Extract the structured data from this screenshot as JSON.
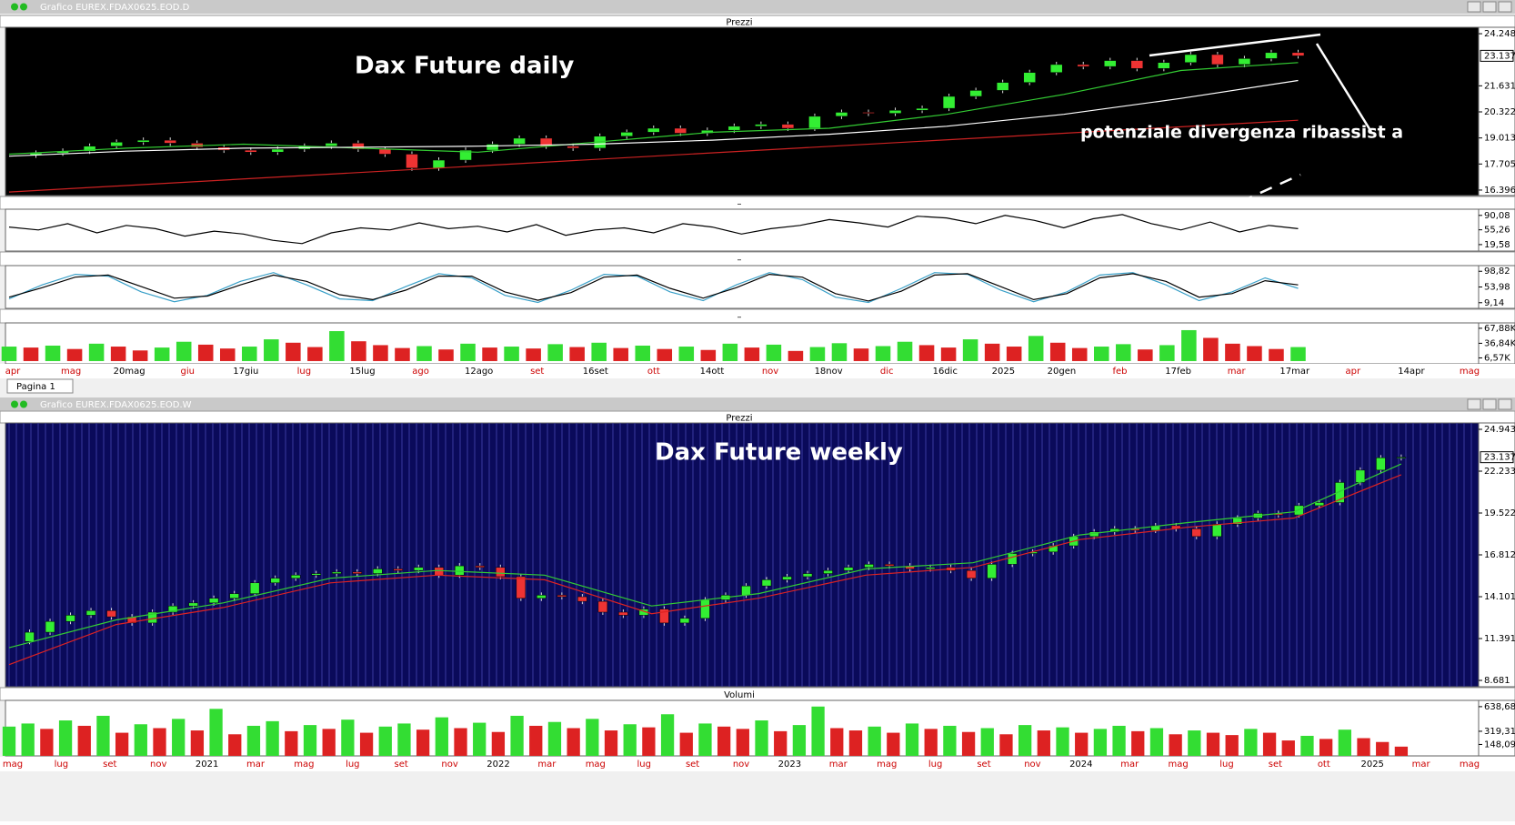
{
  "windows": [
    {
      "title": "Grafico EUREX.FDAX0625.EOD.D",
      "panels": [
        {
          "header": "Prezzi",
          "type": "candle",
          "background": "#000000",
          "ylim": [
            16120,
            24570
          ],
          "yticks": [
            {
              "value": 24248,
              "label": "24.248"
            },
            {
              "value": 21631,
              "label": "21.631"
            },
            {
              "value": 20322,
              "label": "20.322"
            },
            {
              "value": 19013,
              "label": "19.013"
            },
            {
              "value": 17705,
              "label": "17.705"
            },
            {
              "value": 16396,
              "label": "16.396"
            }
          ],
          "last": {
            "value": 23137,
            "label": "23.137"
          },
          "annotations": [
            "Dax Future daily",
            "potenziale  divergenza ribassist a"
          ],
          "series": [
            {
              "name": "close",
              "values": [
                18150,
                18250,
                18350,
                18600,
                18800,
                18900,
                18750,
                18550,
                18400,
                18300,
                18450,
                18600,
                18750,
                18450,
                18200,
                17500,
                17900,
                18400,
                18700,
                19000,
                18600,
                18500,
                19100,
                19300,
                19500,
                19250,
                19400,
                19600,
                19700,
                19500,
                20100,
                20300,
                20250,
                20400,
                20500,
                21100,
                21400,
                21800,
                22300,
                22700,
                22600,
                22900,
                22500,
                22800,
                23200,
                22700,
                23000,
                23300,
                23137
              ]
            },
            {
              "name": "ma-fast",
              "color": "#33cc33",
              "values": [
                18200,
                18500,
                18700,
                18500,
                18300,
                18800,
                19300,
                19500,
                20200,
                21200,
                22400,
                22800
              ]
            },
            {
              "name": "ma-mid",
              "color": "#ffffff",
              "values": [
                18100,
                18350,
                18500,
                18550,
                18600,
                18700,
                18900,
                19200,
                19600,
                20200,
                21000,
                21900
              ]
            },
            {
              "name": "ma-slow",
              "color": "#cc2222",
              "values": [
                16300,
                19900
              ]
            }
          ]
        },
        {
          "header": "–",
          "type": "line",
          "background": "#ffffff",
          "ylim": [
            4,
            105
          ],
          "yticks": [
            {
              "value": 90.08,
              "label": "90,08"
            },
            {
              "value": 55.26,
              "label": "55,26"
            },
            {
              "value": 19.58,
              "label": "19,58"
            }
          ],
          "series": [
            {
              "name": "rsi",
              "color": "#000000",
              "values": [
                62,
                55,
                70,
                48,
                66,
                58,
                40,
                52,
                45,
                30,
                22,
                48,
                60,
                55,
                72,
                58,
                64,
                50,
                68,
                42,
                55,
                60,
                48,
                70,
                62,
                45,
                58,
                66,
                80,
                72,
                62,
                88,
                84,
                70,
                90,
                78,
                60,
                82,
                92,
                70,
                55,
                74,
                50,
                66,
                58
              ]
            }
          ]
        },
        {
          "header": "–",
          "type": "line",
          "background": "#ffffff",
          "ylim": [
            -7,
            115
          ],
          "yticks": [
            {
              "value": 98.82,
              "label": "98,82"
            },
            {
              "value": 53.98,
              "label": "53,98"
            },
            {
              "value": 9.14,
              "label": "9,14"
            }
          ],
          "series": [
            {
              "name": "stoch-k",
              "color": "#3aa0c8",
              "values": [
                20,
                60,
                90,
                85,
                40,
                12,
                30,
                70,
                95,
                60,
                20,
                15,
                55,
                92,
                80,
                30,
                10,
                45,
                90,
                85,
                40,
                15,
                60,
                95,
                75,
                25,
                10,
                50,
                95,
                90,
                45,
                12,
                40,
                88,
                95,
                60,
                15,
                40,
                80,
                50
              ]
            },
            {
              "name": "stoch-d",
              "color": "#000000",
              "values": [
                25,
                52,
                82,
                88,
                55,
                22,
                28,
                60,
                88,
                70,
                32,
                18,
                45,
                85,
                85,
                40,
                16,
                38,
                82,
                88,
                50,
                22,
                52,
                90,
                82,
                35,
                14,
                42,
                88,
                92,
                55,
                18,
                35,
                80,
                92,
                70,
                25,
                35,
                72,
                60
              ]
            }
          ]
        },
        {
          "header": "–",
          "type": "volume",
          "background": "#ffffff",
          "ylim": [
            -5700,
            79000
          ],
          "yticks": [
            {
              "value": 67880,
              "label": "67,88K"
            },
            {
              "value": 36840,
              "label": "36,84K"
            },
            {
              "value": 6570,
              "label": "6,57K"
            }
          ],
          "up_color": "#33dd33",
          "down_color": "#dd2222",
          "series": [
            {
              "name": "volume",
              "values": [
                30000,
                28000,
                32000,
                25000,
                36000,
                30000,
                22000,
                28000,
                40000,
                34000,
                26000,
                30000,
                45000,
                38000,
                29000,
                62000,
                41000,
                33000,
                27000,
                31000,
                24000,
                36000,
                28000,
                30000,
                26000,
                35000,
                29000,
                38000,
                27000,
                32000,
                25000,
                30000,
                23000,
                36000,
                28000,
                34000,
                21000,
                29000,
                37000,
                26000,
                31000,
                40000,
                33000,
                28000,
                45000,
                36000,
                30000,
                52000,
                38000,
                27000,
                30000,
                35000,
                24000,
                33000,
                64000,
                48000,
                36000,
                31000,
                25000,
                29000
              ]
            }
          ]
        }
      ],
      "xlabels": [
        "apr",
        "mag",
        "20mag",
        "giu",
        "17giu",
        "lug",
        "15lug",
        "ago",
        "12ago",
        "set",
        "16set",
        "ott",
        "14ott",
        "nov",
        "18nov",
        "dic",
        "16dic",
        "2025",
        "20gen",
        "feb",
        "17feb",
        "mar",
        "17mar",
        "apr",
        "14apr",
        "mag"
      ],
      "tab": "Pagina 1"
    },
    {
      "title": "Grafico EUREX.FDAX0625.EOD.W",
      "panels": [
        {
          "header": "Prezzi",
          "type": "candle",
          "background": "#0a0a5a",
          "vgrid": true,
          "ylim": [
            8270,
            25355
          ],
          "yticks": [
            {
              "value": 24943,
              "label": "24.943"
            },
            {
              "value": 22233,
              "label": "22.233"
            },
            {
              "value": 19522,
              "label": "19.522"
            },
            {
              "value": 16812,
              "label": "16.812"
            },
            {
              "value": 14101,
              "label": "14.101"
            },
            {
              "value": 11391,
              "label": "11.391"
            },
            {
              "value": 8681,
              "label": "8.681"
            }
          ],
          "last": {
            "value": 23137,
            "label": "23.137"
          },
          "annotations": [
            "Dax Future weekly"
          ],
          "series": [
            {
              "name": "close",
              "values": [
                11200,
                11800,
                12500,
                12900,
                13200,
                12800,
                12400,
                13100,
                13500,
                13700,
                14000,
                14300,
                15000,
                15300,
                15500,
                15600,
                15700,
                15600,
                15900,
                15800,
                16000,
                15500,
                16100,
                16000,
                15400,
                14000,
                14200,
                14100,
                13800,
                13100,
                12900,
                13300,
                12400,
                12700,
                13900,
                14200,
                14800,
                15200,
                15400,
                15600,
                15800,
                16000,
                16200,
                16100,
                15900,
                16000,
                15800,
                15300,
                16200,
                16900,
                17000,
                17400,
                18000,
                18300,
                18500,
                18400,
                18700,
                18500,
                18000,
                18800,
                19200,
                19500,
                19400,
                20000,
                20200,
                21500,
                22300,
                23100,
                23137
              ]
            },
            {
              "name": "ma-fast",
              "color": "#33cc33",
              "values": [
                10800,
                12600,
                13700,
                15300,
                15800,
                15500,
                13500,
                14300,
                15900,
                16300,
                18100,
                18900,
                19600,
                22700
              ]
            },
            {
              "name": "ma-slow",
              "color": "#dd2222",
              "values": [
                9700,
                12300,
                13400,
                15000,
                15500,
                15200,
                13000,
                14000,
                15500,
                16000,
                17800,
                18600,
                19200,
                22000
              ]
            }
          ]
        },
        {
          "header": "Volumi",
          "type": "volume",
          "background": "#ffffff",
          "ylim": [
            0,
            720000
          ],
          "yticks": [
            {
              "value": 638680,
              "label": "638,68K"
            },
            {
              "value": 319310,
              "label": "319,31K"
            },
            {
              "value": 148090,
              "label": "148,09K"
            }
          ],
          "up_color": "#33dd33",
          "down_color": "#dd2222",
          "series": [
            {
              "name": "volume",
              "values": [
                380000,
                420000,
                350000,
                460000,
                390000,
                520000,
                300000,
                410000,
                360000,
                480000,
                330000,
                610000,
                280000,
                390000,
                450000,
                320000,
                400000,
                350000,
                470000,
                300000,
                380000,
                420000,
                340000,
                500000,
                360000,
                430000,
                310000,
                520000,
                390000,
                440000,
                360000,
                480000,
                330000,
                410000,
                370000,
                540000,
                300000,
                420000,
                380000,
                350000,
                460000,
                320000,
                400000,
                640000,
                360000,
                330000,
                380000,
                300000,
                420000,
                350000,
                390000,
                310000,
                360000,
                280000,
                400000,
                330000,
                370000,
                300000,
                350000,
                390000,
                320000,
                360000,
                280000,
                330000,
                300000,
                270000,
                350000,
                300000,
                200000,
                260000,
                220000,
                340000,
                230000,
                180000,
                120000
              ]
            }
          ]
        }
      ],
      "xlabels": [
        "mag",
        "lug",
        "set",
        "nov",
        "2021",
        "mar",
        "mag",
        "lug",
        "set",
        "nov",
        "2022",
        "mar",
        "mag",
        "lug",
        "set",
        "nov",
        "2023",
        "mar",
        "mag",
        "lug",
        "set",
        "nov",
        "2024",
        "mar",
        "mag",
        "lug",
        "set",
        "ott",
        "2025",
        "mar",
        "mag"
      ]
    }
  ]
}
